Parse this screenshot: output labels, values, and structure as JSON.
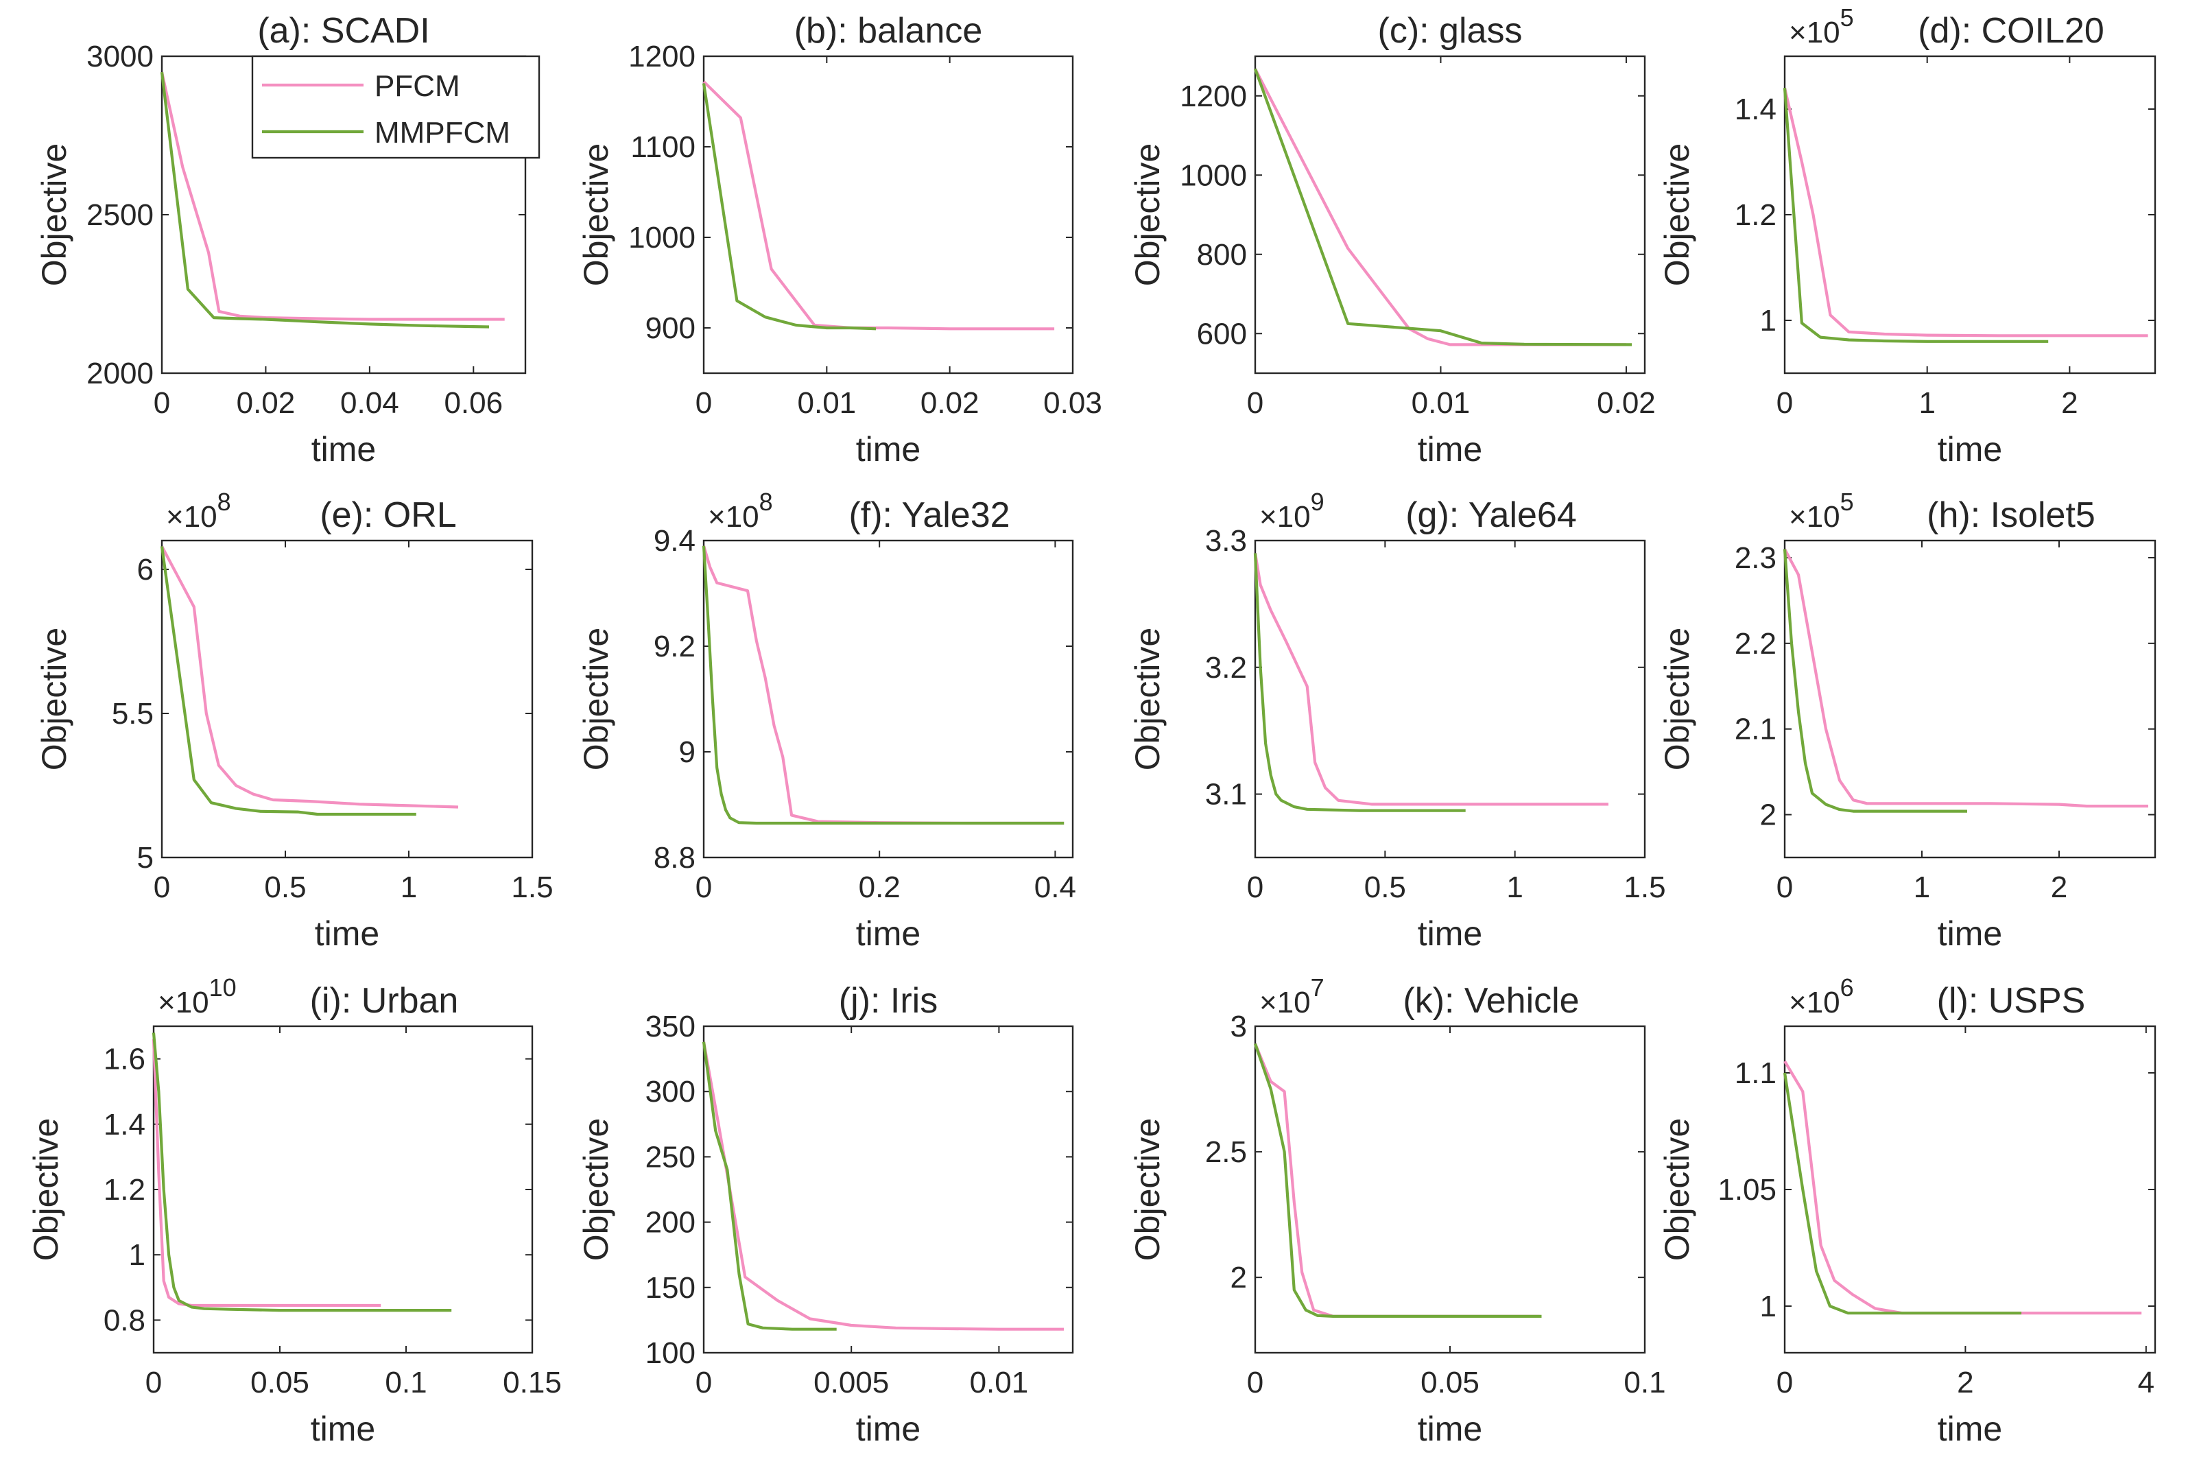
{
  "colors": {
    "pfcm": "#f48fc0",
    "mmpfcm": "#71a83a",
    "axis": "#262626"
  },
  "legend": {
    "entries": [
      "PFCM",
      "MMPFCM"
    ],
    "location": "top-right",
    "panel": 0
  },
  "chart_data": [
    {
      "type": "line",
      "title": "(a): SCADI",
      "xlabel": "time",
      "ylabel": "Objective",
      "exponent": "",
      "xlim": [
        0,
        0.07
      ],
      "ylim": [
        2000,
        3000
      ],
      "xticks": [
        0,
        0.02,
        0.04,
        0.06
      ],
      "xtick_labels": [
        "0",
        "0.02",
        "0.04",
        "0.06"
      ],
      "yticks": [
        2000,
        2500,
        3000
      ],
      "ytick_labels": [
        "2000",
        "2500",
        "3000"
      ],
      "series": [
        {
          "name": "PFCM",
          "x": [
            0,
            0.004,
            0.009,
            0.011,
            0.015,
            0.02,
            0.03,
            0.04,
            0.05,
            0.06,
            0.066
          ],
          "y": [
            2950,
            2650,
            2380,
            2195,
            2180,
            2175,
            2172,
            2170,
            2170,
            2170,
            2170
          ]
        },
        {
          "name": "MMPFCM",
          "x": [
            0,
            0.005,
            0.01,
            0.015,
            0.02,
            0.03,
            0.04,
            0.05,
            0.06,
            0.063
          ],
          "y": [
            2950,
            2265,
            2175,
            2172,
            2170,
            2162,
            2155,
            2150,
            2147,
            2146
          ]
        }
      ]
    },
    {
      "type": "line",
      "title": "(b): balance",
      "xlabel": "time",
      "ylabel": "Objective",
      "exponent": "",
      "xlim": [
        0,
        0.03
      ],
      "ylim": [
        850,
        1200
      ],
      "xticks": [
        0,
        0.01,
        0.02,
        0.03
      ],
      "xtick_labels": [
        "0",
        "0.01",
        "0.02",
        "0.03"
      ],
      "yticks": [
        900,
        1000,
        1100,
        1200
      ],
      "ytick_labels": [
        "900",
        "1000",
        "1100",
        "1200"
      ],
      "series": [
        {
          "name": "PFCM",
          "x": [
            0,
            0.003,
            0.0055,
            0.009,
            0.012,
            0.015,
            0.02,
            0.025,
            0.0285
          ],
          "y": [
            1172,
            1132,
            965,
            903,
            900,
            900,
            899,
            899,
            899
          ]
        },
        {
          "name": "MMPFCM",
          "x": [
            0,
            0.0027,
            0.005,
            0.0075,
            0.01,
            0.012,
            0.014
          ],
          "y": [
            1170,
            930,
            912,
            903,
            900,
            900,
            899
          ]
        }
      ]
    },
    {
      "type": "line",
      "title": "(c): glass",
      "xlabel": "time",
      "ylabel": "Objective",
      "exponent": "",
      "xlim": [
        0,
        0.021
      ],
      "ylim": [
        500,
        1300
      ],
      "xticks": [
        0,
        0.01,
        0.02
      ],
      "xtick_labels": [
        "0",
        "0.01",
        "0.02"
      ],
      "yticks": [
        600,
        800,
        1000,
        1200
      ],
      "ytick_labels": [
        "600",
        "800",
        "1000",
        "1200"
      ],
      "series": [
        {
          "name": "PFCM",
          "x": [
            0,
            0.005,
            0.0083,
            0.0093,
            0.0105,
            0.014,
            0.02
          ],
          "y": [
            1268,
            815,
            612,
            587,
            572,
            572,
            572
          ]
        },
        {
          "name": "MMPFCM",
          "x": [
            0,
            0.005,
            0.01,
            0.0122,
            0.0145,
            0.0203
          ],
          "y": [
            1268,
            625,
            607,
            576,
            573,
            572
          ]
        }
      ]
    },
    {
      "type": "line",
      "title": "(d): COIL20",
      "xlabel": "time",
      "ylabel": "Objective",
      "exponent": "5",
      "xlim": [
        0,
        2.6
      ],
      "ylim": [
        0.9,
        1.5
      ],
      "xticks": [
        0,
        1,
        2
      ],
      "xtick_labels": [
        "0",
        "1",
        "2"
      ],
      "yticks": [
        1,
        1.2,
        1.4
      ],
      "ytick_labels": [
        "1",
        "1.2",
        "1.4"
      ],
      "series": [
        {
          "name": "PFCM",
          "x": [
            0,
            0.12,
            0.2,
            0.32,
            0.45,
            0.7,
            1,
            1.5,
            2,
            2.55
          ],
          "y": [
            1.44,
            1.3,
            1.2,
            1.01,
            0.978,
            0.974,
            0.972,
            0.971,
            0.971,
            0.971
          ]
        },
        {
          "name": "MMPFCM",
          "x": [
            0,
            0.12,
            0.25,
            0.45,
            0.7,
            1,
            1.5,
            1.85
          ],
          "y": [
            1.44,
            0.995,
            0.968,
            0.963,
            0.961,
            0.96,
            0.96,
            0.96
          ]
        }
      ]
    },
    {
      "type": "line",
      "title": "(e): ORL",
      "xlabel": "time",
      "ylabel": "Objective",
      "exponent": "8",
      "xlim": [
        0,
        1.5
      ],
      "ylim": [
        5.0,
        6.1
      ],
      "xticks": [
        0,
        0.5,
        1,
        1.5
      ],
      "xtick_labels": [
        "0",
        "0.5",
        "1",
        "1.5"
      ],
      "yticks": [
        5,
        5.5,
        6
      ],
      "ytick_labels": [
        "5",
        "5.5",
        "6"
      ],
      "series": [
        {
          "name": "PFCM",
          "x": [
            0,
            0.13,
            0.18,
            0.23,
            0.3,
            0.37,
            0.45,
            0.6,
            0.8,
            1,
            1.2
          ],
          "y": [
            6.08,
            5.87,
            5.5,
            5.32,
            5.25,
            5.22,
            5.2,
            5.195,
            5.185,
            5.18,
            5.175
          ]
        },
        {
          "name": "MMPFCM",
          "x": [
            0,
            0.13,
            0.2,
            0.3,
            0.4,
            0.55,
            0.63,
            0.8,
            1.03
          ],
          "y": [
            6.08,
            5.27,
            5.19,
            5.17,
            5.16,
            5.158,
            5.15,
            5.15,
            5.15
          ]
        }
      ]
    },
    {
      "type": "line",
      "title": "(f): Yale32",
      "xlabel": "time",
      "ylabel": "Objective",
      "exponent": "8",
      "xlim": [
        0,
        0.42
      ],
      "ylim": [
        8.8,
        9.4
      ],
      "xticks": [
        0,
        0.2,
        0.4
      ],
      "xtick_labels": [
        "0",
        "0.2",
        "0.4"
      ],
      "yticks": [
        8.8,
        9,
        9.2,
        9.4
      ],
      "ytick_labels": [
        "8.8",
        "9",
        "9.2",
        "9.4"
      ],
      "series": [
        {
          "name": "PFCM",
          "x": [
            0,
            0.007,
            0.015,
            0.05,
            0.06,
            0.07,
            0.08,
            0.09,
            0.1,
            0.13,
            0.2,
            0.3,
            0.41
          ],
          "y": [
            9.39,
            9.35,
            9.32,
            9.305,
            9.21,
            9.14,
            9.05,
            8.99,
            8.88,
            8.868,
            8.866,
            8.865,
            8.865
          ]
        },
        {
          "name": "MMPFCM",
          "x": [
            0,
            0.005,
            0.01,
            0.015,
            0.02,
            0.025,
            0.03,
            0.04,
            0.06,
            0.1,
            0.2,
            0.3,
            0.41
          ],
          "y": [
            9.39,
            9.25,
            9.1,
            8.97,
            8.92,
            8.89,
            8.875,
            8.866,
            8.865,
            8.865,
            8.865,
            8.865,
            8.865
          ]
        }
      ]
    },
    {
      "type": "line",
      "title": "(g): Yale64",
      "xlabel": "time",
      "ylabel": "Objective",
      "exponent": "9",
      "xlim": [
        0,
        1.5
      ],
      "ylim": [
        3.05,
        3.3
      ],
      "xticks": [
        0,
        0.5,
        1,
        1.5
      ],
      "xtick_labels": [
        "0",
        "0.5",
        "1",
        "1.5"
      ],
      "yticks": [
        3.1,
        3.2,
        3.3
      ],
      "ytick_labels": [
        "3.1",
        "3.2",
        "3.3"
      ],
      "series": [
        {
          "name": "PFCM",
          "x": [
            0,
            0.02,
            0.06,
            0.12,
            0.2,
            0.23,
            0.27,
            0.32,
            0.45,
            0.8,
            1.36
          ],
          "y": [
            3.29,
            3.265,
            3.245,
            3.22,
            3.185,
            3.125,
            3.105,
            3.095,
            3.092,
            3.092,
            3.092
          ]
        },
        {
          "name": "MMPFCM",
          "x": [
            0,
            0.02,
            0.04,
            0.06,
            0.08,
            0.1,
            0.15,
            0.2,
            0.4,
            0.81
          ],
          "y": [
            3.29,
            3.2,
            3.14,
            3.115,
            3.1,
            3.095,
            3.09,
            3.088,
            3.087,
            3.087
          ]
        }
      ]
    },
    {
      "type": "line",
      "title": "(h): Isolet5",
      "xlabel": "time",
      "ylabel": "Objective",
      "exponent": "5",
      "xlim": [
        0,
        2.7
      ],
      "ylim": [
        1.95,
        2.32
      ],
      "xticks": [
        0,
        1,
        2
      ],
      "xtick_labels": [
        "0",
        "1",
        "2"
      ],
      "yticks": [
        2,
        2.1,
        2.2,
        2.3
      ],
      "ytick_labels": [
        "2",
        "2.1",
        "2.2",
        "2.3"
      ],
      "series": [
        {
          "name": "PFCM",
          "x": [
            0,
            0.1,
            0.2,
            0.3,
            0.4,
            0.5,
            0.6,
            1,
            1.5,
            2,
            2.2,
            2.65
          ],
          "y": [
            2.31,
            2.28,
            2.19,
            2.1,
            2.04,
            2.017,
            2.013,
            2.013,
            2.013,
            2.012,
            2.01,
            2.01
          ]
        },
        {
          "name": "MMPFCM",
          "x": [
            0,
            0.05,
            0.1,
            0.15,
            0.2,
            0.3,
            0.4,
            0.5,
            0.8,
            1.33
          ],
          "y": [
            2.31,
            2.2,
            2.12,
            2.06,
            2.025,
            2.012,
            2.006,
            2.004,
            2.004,
            2.004
          ]
        }
      ]
    },
    {
      "type": "line",
      "title": "(i): Urban",
      "xlabel": "time",
      "ylabel": "Objective",
      "exponent": "10",
      "xlim": [
        0,
        0.15
      ],
      "ylim": [
        0.7,
        1.7
      ],
      "xticks": [
        0,
        0.05,
        0.1,
        0.15
      ],
      "xtick_labels": [
        "0",
        "0.05",
        "0.1",
        "0.15"
      ],
      "yticks": [
        0.8,
        1,
        1.2,
        1.4,
        1.6
      ],
      "ytick_labels": [
        "0.8",
        "1",
        "1.2",
        "1.4",
        "1.6"
      ],
      "series": [
        {
          "name": "PFCM",
          "x": [
            0,
            0.002,
            0.004,
            0.006,
            0.01,
            0.015,
            0.03,
            0.05,
            0.07,
            0.09
          ],
          "y": [
            1.66,
            1.25,
            0.92,
            0.87,
            0.85,
            0.845,
            0.845,
            0.845,
            0.845,
            0.845
          ]
        },
        {
          "name": "MMPFCM",
          "x": [
            0,
            0.002,
            0.004,
            0.006,
            0.008,
            0.01,
            0.015,
            0.02,
            0.03,
            0.05,
            0.08,
            0.118
          ],
          "y": [
            1.68,
            1.5,
            1.2,
            1.0,
            0.9,
            0.86,
            0.84,
            0.835,
            0.833,
            0.83,
            0.83,
            0.83
          ]
        }
      ]
    },
    {
      "type": "line",
      "title": "(j): Iris",
      "xlabel": "time",
      "ylabel": "Objective",
      "exponent": "",
      "xlim": [
        0,
        0.0125
      ],
      "ylim": [
        100,
        350
      ],
      "xticks": [
        0,
        0.005,
        0.01
      ],
      "xtick_labels": [
        "0",
        "0.005",
        "0.01"
      ],
      "yticks": [
        100,
        150,
        200,
        250,
        300,
        350
      ],
      "ytick_labels": [
        "100",
        "150",
        "200",
        "250",
        "300",
        "350"
      ],
      "series": [
        {
          "name": "PFCM",
          "x": [
            0,
            0.0005,
            0.0014,
            0.0025,
            0.0036,
            0.005,
            0.0065,
            0.008,
            0.01,
            0.0122
          ],
          "y": [
            338,
            275,
            158,
            140,
            126,
            121,
            119,
            118.5,
            118,
            118
          ]
        },
        {
          "name": "MMPFCM",
          "x": [
            0,
            0.0004,
            0.0008,
            0.0012,
            0.0015,
            0.002,
            0.003,
            0.0045
          ],
          "y": [
            338,
            270,
            240,
            160,
            122,
            119,
            118,
            118
          ]
        }
      ]
    },
    {
      "type": "line",
      "title": "(k): Vehicle",
      "xlabel": "time",
      "ylabel": "Objective",
      "exponent": "7",
      "xlim": [
        0,
        0.1
      ],
      "ylim": [
        1.7,
        3.0
      ],
      "xticks": [
        0,
        0.05,
        0.1
      ],
      "xtick_labels": [
        "0",
        "0.05",
        "0.1"
      ],
      "yticks": [
        2,
        2.5,
        3
      ],
      "ytick_labels": [
        "2",
        "2.5",
        "3"
      ],
      "series": [
        {
          "name": "PFCM",
          "x": [
            0,
            0.004,
            0.0075,
            0.01,
            0.012,
            0.015,
            0.02,
            0.04,
            0.06,
            0.073
          ],
          "y": [
            2.93,
            2.78,
            2.74,
            2.3,
            2.02,
            1.87,
            1.845,
            1.845,
            1.845,
            1.845
          ]
        },
        {
          "name": "MMPFCM",
          "x": [
            0,
            0.004,
            0.0075,
            0.01,
            0.013,
            0.016,
            0.02,
            0.04,
            0.06,
            0.0735
          ],
          "y": [
            2.93,
            2.75,
            2.5,
            1.95,
            1.87,
            1.848,
            1.845,
            1.845,
            1.845,
            1.845
          ]
        }
      ]
    },
    {
      "type": "line",
      "title": "(l): USPS",
      "xlabel": "time",
      "ylabel": "Objective",
      "exponent": "6",
      "xlim": [
        0,
        4.1
      ],
      "ylim": [
        0.98,
        1.12
      ],
      "xticks": [
        0,
        2,
        4
      ],
      "xtick_labels": [
        "0",
        "2",
        "4"
      ],
      "yticks": [
        1,
        1.05,
        1.1
      ],
      "ytick_labels": [
        "1",
        "1.05",
        "1.1"
      ],
      "series": [
        {
          "name": "PFCM",
          "x": [
            0,
            0.2,
            0.4,
            0.55,
            0.75,
            1.0,
            1.3,
            1.8,
            2.5,
            3.2,
            3.95
          ],
          "y": [
            1.105,
            1.092,
            1.026,
            1.011,
            1.005,
            0.999,
            0.997,
            0.997,
            0.997,
            0.997,
            0.997
          ]
        },
        {
          "name": "MMPFCM",
          "x": [
            0,
            0.2,
            0.35,
            0.5,
            0.7,
            1.0,
            1.5,
            2.0,
            2.62
          ],
          "y": [
            1.1,
            1.05,
            1.015,
            1.0,
            0.997,
            0.997,
            0.997,
            0.997,
            0.997
          ]
        }
      ]
    }
  ]
}
